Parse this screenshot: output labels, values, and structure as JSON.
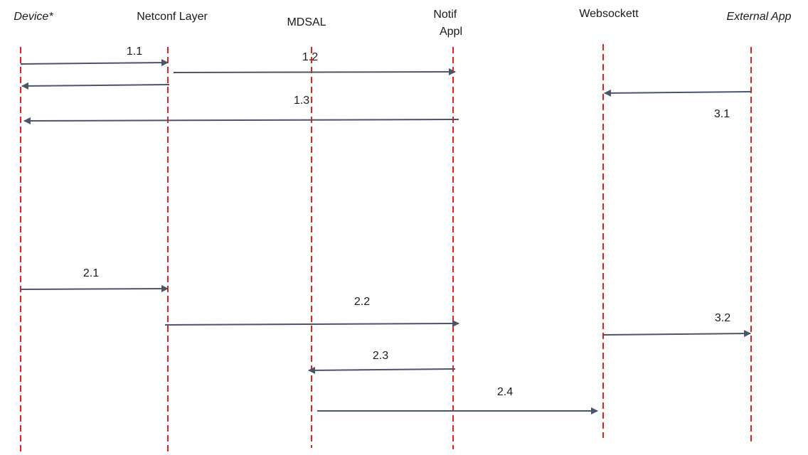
{
  "colors": {
    "lifeline": "#e8201e",
    "arrow": "#4a5568",
    "text": "#1a1a1a",
    "background": "#ffffff"
  },
  "participants": [
    {
      "id": "device",
      "label": "Device*",
      "italic": true
    },
    {
      "id": "netconf",
      "label": "Netconf Layer",
      "italic": false
    },
    {
      "id": "mdsal",
      "label": "MDSAL",
      "italic": false
    },
    {
      "id": "notif",
      "label": [
        "Notif",
        "Appl"
      ],
      "italic": false
    },
    {
      "id": "websocket",
      "label": "Websockett",
      "italic": false
    },
    {
      "id": "external",
      "label": "External App",
      "italic": true
    }
  ],
  "messages": [
    {
      "label": "1.1",
      "from": "device",
      "to": "netconf"
    },
    {
      "label": "1.2",
      "from": "netconf",
      "to": "notif"
    },
    {
      "label": "",
      "from": "netconf",
      "to": "device"
    },
    {
      "label": "1.3",
      "from": "notif",
      "to": "device"
    },
    {
      "label": "3.1",
      "from": "external",
      "to": "websocket"
    },
    {
      "label": "2.1",
      "from": "device",
      "to": "netconf"
    },
    {
      "label": "2.2",
      "from": "netconf",
      "to": "notif"
    },
    {
      "label": "3.2",
      "from": "websocket",
      "to": "external"
    },
    {
      "label": "2.3",
      "from": "notif",
      "to": "mdsal"
    },
    {
      "label": "2.4",
      "from": "mdsal",
      "to": "websocket"
    }
  ]
}
